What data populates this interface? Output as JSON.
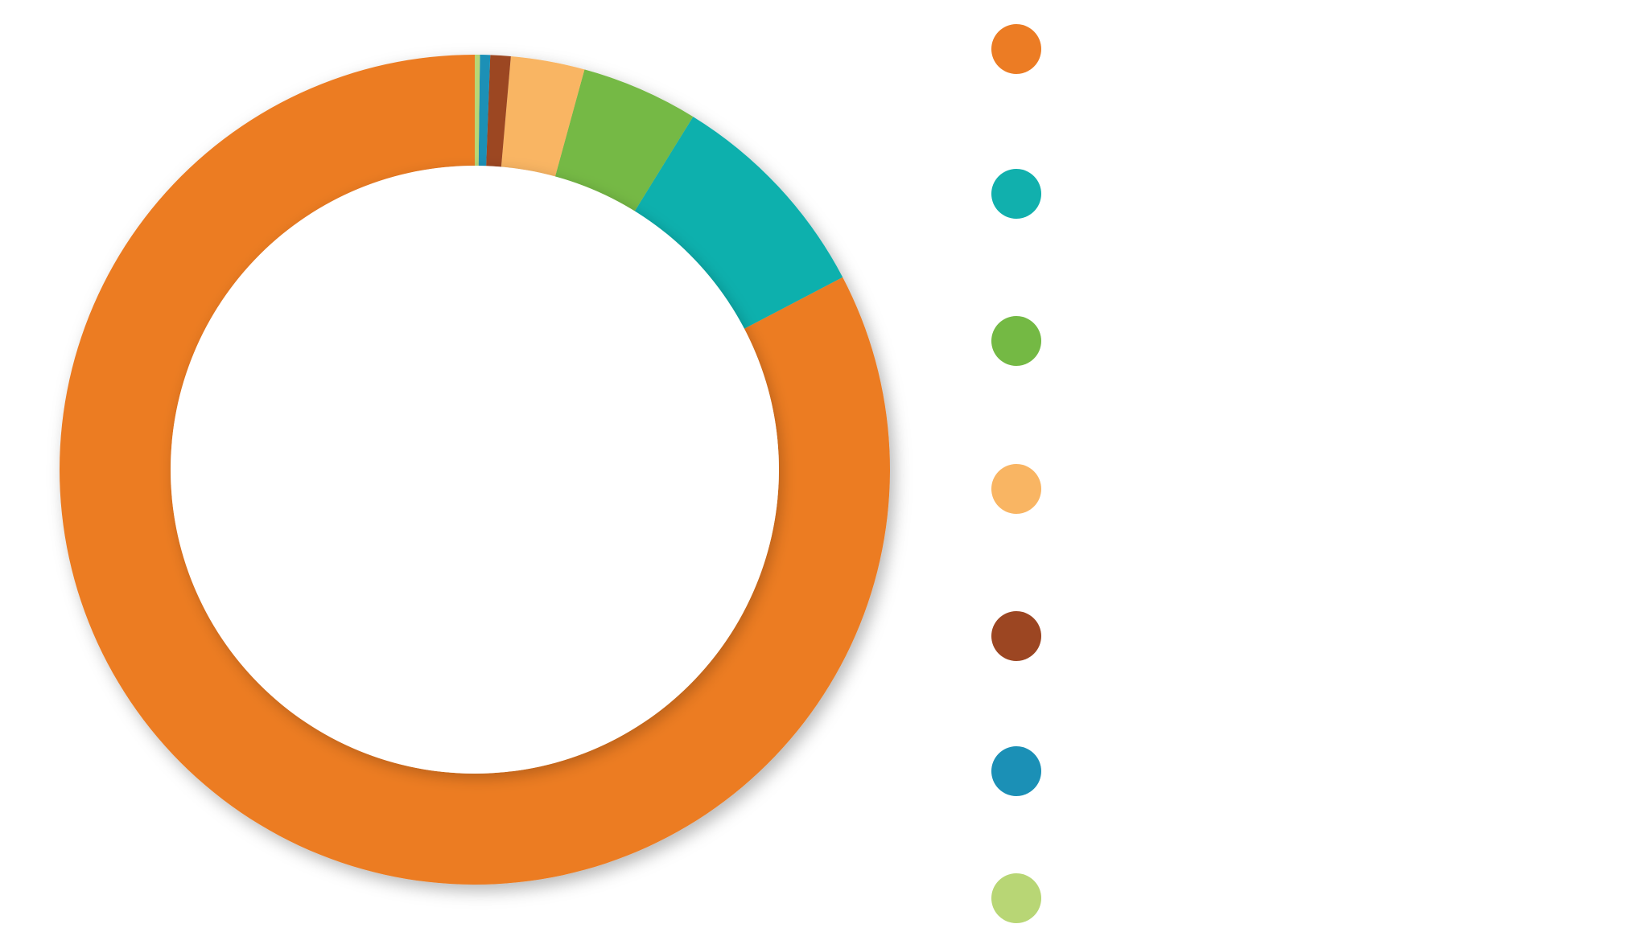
{
  "chart_data": {
    "type": "pie",
    "variant": "donut",
    "series": [
      {
        "value": 83.5,
        "color": "#EC7C24"
      },
      {
        "value": 8.6,
        "color": "#11B0AD"
      },
      {
        "value": 4.6,
        "color": "#74B944"
      },
      {
        "value": 2.9,
        "color": "#F9B563"
      },
      {
        "value": 0.8,
        "color": "#9C4622"
      },
      {
        "value": 0.4,
        "color": "#1B90B6"
      },
      {
        "value": 0.2,
        "color": "#B8D675"
      }
    ],
    "legend": {
      "placement": "right",
      "entries": [
        {
          "color": "#EC7C24"
        },
        {
          "color": "#11B0AD"
        },
        {
          "color": "#74B944"
        },
        {
          "color": "#F9B563"
        },
        {
          "color": "#9C4622"
        },
        {
          "color": "#1B90B6"
        },
        {
          "color": "#B8D675"
        }
      ]
    },
    "start_angle": "top",
    "direction": "counter-clockwise"
  }
}
